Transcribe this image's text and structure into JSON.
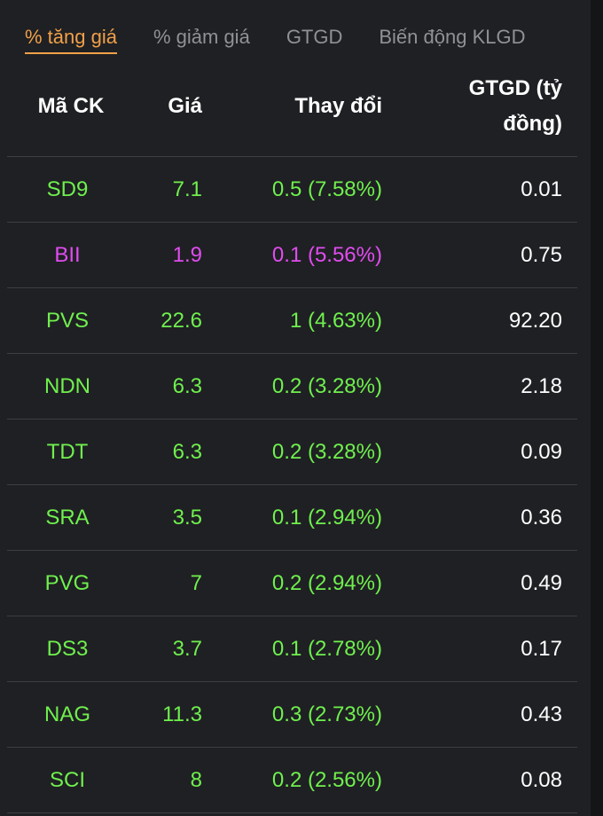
{
  "tabs": [
    {
      "label": "% tăng giá",
      "active": true
    },
    {
      "label": "% giảm giá",
      "active": false
    },
    {
      "label": "GTGD",
      "active": false
    },
    {
      "label": "Biến động KLGD",
      "active": false
    }
  ],
  "columns": {
    "code": "Mã CK",
    "price": "Giá",
    "change": "Thay đổi",
    "value_line1": "GTGD (tỷ",
    "value_line2": "đồng)"
  },
  "colors": {
    "accent": "#f0a04a",
    "up": "#6ff04e",
    "ceiling": "#e04cf0",
    "value": "#ffffff"
  },
  "rows": [
    {
      "code": "SD9",
      "price": "7.1",
      "change": "0.5 (7.58%)",
      "value": "0.01",
      "color": "#6ff04e"
    },
    {
      "code": "BII",
      "price": "1.9",
      "change": "0.1 (5.56%)",
      "value": "0.75",
      "color": "#e04cf0"
    },
    {
      "code": "PVS",
      "price": "22.6",
      "change": "1 (4.63%)",
      "value": "92.20",
      "color": "#6ff04e"
    },
    {
      "code": "NDN",
      "price": "6.3",
      "change": "0.2 (3.28%)",
      "value": "2.18",
      "color": "#6ff04e"
    },
    {
      "code": "TDT",
      "price": "6.3",
      "change": "0.2 (3.28%)",
      "value": "0.09",
      "color": "#6ff04e"
    },
    {
      "code": "SRA",
      "price": "3.5",
      "change": "0.1 (2.94%)",
      "value": "0.36",
      "color": "#6ff04e"
    },
    {
      "code": "PVG",
      "price": "7",
      "change": "0.2 (2.94%)",
      "value": "0.49",
      "color": "#6ff04e"
    },
    {
      "code": "DS3",
      "price": "3.7",
      "change": "0.1 (2.78%)",
      "value": "0.17",
      "color": "#6ff04e"
    },
    {
      "code": "NAG",
      "price": "11.3",
      "change": "0.3 (2.73%)",
      "value": "0.43",
      "color": "#6ff04e"
    },
    {
      "code": "SCI",
      "price": "8",
      "change": "0.2 (2.56%)",
      "value": "0.08",
      "color": "#6ff04e"
    }
  ]
}
